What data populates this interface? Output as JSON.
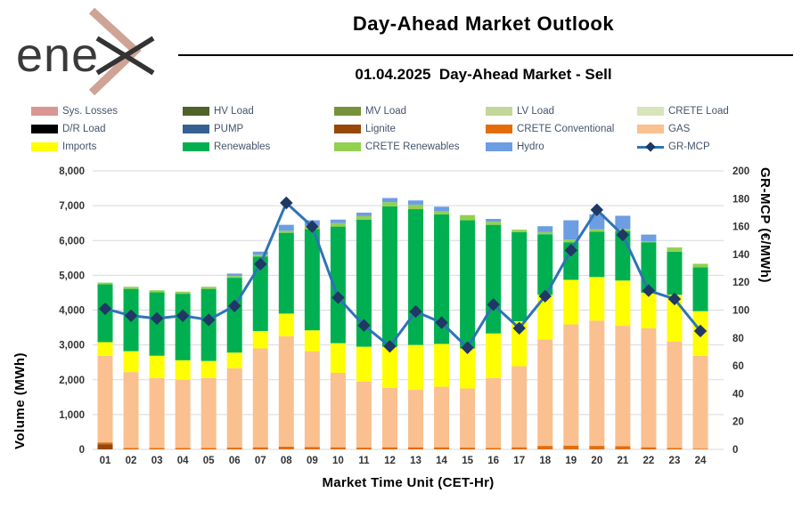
{
  "header": {
    "logo_text": "ene",
    "title": "Day-Ahead Market Outlook",
    "subtitle": "01.04.2025  Day-Ahead Market - Sell"
  },
  "colors": {
    "grid": "#d9d9d9",
    "tick_text": "#333333",
    "legend_text": "#44546a",
    "line": "#2e74b5",
    "marker": "#1f3864",
    "logo_tan": "#cfa395",
    "logo_dark": "#333333"
  },
  "legend": [
    {
      "label": "Sys. Losses",
      "color": "#d99694",
      "type": "box"
    },
    {
      "label": "HV Load",
      "color": "#4f6228",
      "type": "box"
    },
    {
      "label": "MV Load",
      "color": "#76933c",
      "type": "box"
    },
    {
      "label": "LV Load",
      "color": "#c4d79b",
      "type": "box"
    },
    {
      "label": "CRETE Load",
      "color": "#d8e4bc",
      "type": "box"
    },
    {
      "label": "D/R Load",
      "color": "#000000",
      "type": "box"
    },
    {
      "label": "PUMP",
      "color": "#376092",
      "type": "box"
    },
    {
      "label": "Lignite",
      "color": "#974706",
      "type": "box"
    },
    {
      "label": "CRETE Conventional",
      "color": "#e46c0a",
      "type": "box"
    },
    {
      "label": "GAS",
      "color": "#fac090",
      "type": "box"
    },
    {
      "label": "Imports",
      "color": "#ffff00",
      "type": "box"
    },
    {
      "label": "Renewables",
      "color": "#00b050",
      "type": "box"
    },
    {
      "label": "CRETE Renewables",
      "color": "#92d050",
      "type": "box"
    },
    {
      "label": "Hydro",
      "color": "#6d9de3",
      "type": "box"
    },
    {
      "label": "GR-MCP",
      "color": "#2e74b5",
      "type": "line",
      "marker_color": "#1f3864"
    }
  ],
  "chart_data": {
    "type": "bar",
    "subtype": "stacked-bar-with-line",
    "categories": [
      "01",
      "02",
      "03",
      "04",
      "05",
      "06",
      "07",
      "08",
      "09",
      "10",
      "11",
      "12",
      "13",
      "14",
      "15",
      "16",
      "17",
      "18",
      "19",
      "20",
      "21",
      "22",
      "23",
      "24"
    ],
    "series": [
      {
        "name": "Sys. Losses",
        "color": "#d99694",
        "values": [
          0,
          0,
          0,
          0,
          0,
          0,
          0,
          0,
          0,
          0,
          0,
          0,
          0,
          0,
          0,
          0,
          0,
          0,
          0,
          0,
          0,
          0,
          0,
          0
        ]
      },
      {
        "name": "HV Load",
        "color": "#4f6228",
        "values": [
          0,
          0,
          0,
          0,
          0,
          0,
          0,
          0,
          0,
          0,
          0,
          0,
          0,
          0,
          0,
          0,
          0,
          0,
          0,
          0,
          0,
          0,
          0,
          0
        ]
      },
      {
        "name": "MV Load",
        "color": "#76933c",
        "values": [
          0,
          0,
          0,
          0,
          0,
          0,
          0,
          0,
          0,
          0,
          0,
          0,
          0,
          0,
          0,
          0,
          0,
          0,
          0,
          0,
          0,
          0,
          0,
          0
        ]
      },
      {
        "name": "LV Load",
        "color": "#c4d79b",
        "values": [
          0,
          0,
          0,
          0,
          0,
          0,
          0,
          0,
          0,
          0,
          0,
          0,
          0,
          0,
          0,
          0,
          0,
          0,
          0,
          0,
          0,
          0,
          0,
          0
        ]
      },
      {
        "name": "CRETE Load",
        "color": "#d8e4bc",
        "values": [
          0,
          0,
          0,
          0,
          0,
          0,
          0,
          0,
          0,
          0,
          0,
          0,
          0,
          0,
          0,
          0,
          0,
          0,
          0,
          0,
          0,
          0,
          0,
          0
        ]
      },
      {
        "name": "D/R Load",
        "color": "#000000",
        "values": [
          0,
          0,
          0,
          0,
          0,
          0,
          0,
          0,
          0,
          0,
          0,
          0,
          0,
          0,
          0,
          0,
          0,
          0,
          0,
          0,
          0,
          0,
          0,
          0
        ]
      },
      {
        "name": "PUMP",
        "color": "#376092",
        "values": [
          0,
          0,
          0,
          0,
          0,
          0,
          0,
          0,
          0,
          0,
          0,
          0,
          0,
          0,
          0,
          0,
          0,
          0,
          0,
          0,
          0,
          0,
          0,
          0
        ]
      },
      {
        "name": "Lignite",
        "color": "#974706",
        "values": [
          150,
          0,
          0,
          0,
          0,
          0,
          0,
          0,
          0,
          0,
          0,
          0,
          0,
          0,
          0,
          0,
          0,
          0,
          0,
          0,
          0,
          0,
          0,
          0
        ]
      },
      {
        "name": "CRETE Conventional",
        "color": "#e46c0a",
        "values": [
          50,
          40,
          40,
          40,
          40,
          50,
          60,
          80,
          70,
          60,
          50,
          60,
          60,
          60,
          50,
          40,
          60,
          100,
          110,
          100,
          90,
          60,
          40,
          20
        ]
      },
      {
        "name": "GAS",
        "color": "#fac090",
        "values": [
          2490,
          2180,
          2010,
          1960,
          2010,
          2280,
          2840,
          3170,
          2750,
          2140,
          1900,
          1710,
          1650,
          1740,
          1700,
          2010,
          2330,
          3060,
          3480,
          3600,
          3460,
          3420,
          3060,
          2670
        ]
      },
      {
        "name": "Imports",
        "color": "#ffff00",
        "values": [
          390,
          600,
          640,
          560,
          490,
          450,
          500,
          650,
          600,
          850,
          1000,
          1180,
          1290,
          1230,
          1150,
          1280,
          1290,
          1280,
          1280,
          1250,
          1300,
          1020,
          1340,
          1280
        ]
      },
      {
        "name": "Renewables",
        "color": "#00b050",
        "values": [
          1660,
          1790,
          1820,
          1910,
          2070,
          2150,
          2140,
          2320,
          2910,
          3350,
          3650,
          4030,
          3900,
          3720,
          3680,
          3120,
          2560,
          1740,
          1080,
          1300,
          1420,
          1450,
          1240,
          1260
        ]
      },
      {
        "name": "CRETE Renewables",
        "color": "#92d050",
        "values": [
          50,
          60,
          60,
          60,
          60,
          50,
          50,
          60,
          100,
          100,
          100,
          120,
          130,
          90,
          150,
          90,
          70,
          60,
          80,
          70,
          60,
          30,
          120,
          100
        ]
      },
      {
        "name": "Hydro",
        "color": "#6d9de3",
        "values": [
          0,
          0,
          0,
          0,
          0,
          70,
          90,
          170,
          150,
          100,
          100,
          120,
          120,
          130,
          0,
          80,
          0,
          170,
          550,
          430,
          380,
          190,
          0,
          0
        ]
      }
    ],
    "line_series": {
      "name": "GR-MCP",
      "color": "#2e74b5",
      "marker_color": "#1f3864",
      "values": [
        101,
        96,
        94,
        96,
        93,
        103,
        133,
        177,
        160,
        109,
        89,
        74,
        99,
        91,
        73,
        104,
        87,
        110,
        143,
        172,
        154,
        114,
        108,
        85
      ]
    },
    "xlabel": "Market Time Unit (CET-Hr)",
    "ylabel_left": "Volume (MWh)",
    "ylabel_right": "GR-MCP (€/MWh)",
    "ylim_left": [
      0,
      8000
    ],
    "ylim_right": [
      0,
      200
    ],
    "yticks_left": [
      0,
      1000,
      2000,
      3000,
      4000,
      5000,
      6000,
      7000,
      8000
    ],
    "yticks_right": [
      0,
      20,
      40,
      60,
      80,
      100,
      120,
      140,
      160,
      180,
      200
    ],
    "grid": true,
    "legend_position": "top"
  }
}
